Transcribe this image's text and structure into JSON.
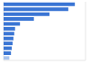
{
  "chart_data": {
    "type": "bar",
    "orientation": "horizontal",
    "categories": [
      null,
      null,
      null,
      null,
      null,
      null,
      null,
      null,
      null,
      null,
      null,
      null
    ],
    "values": [
      87,
      79,
      56,
      37,
      20,
      14,
      13,
      12,
      11,
      10,
      9,
      7
    ],
    "colors": [
      "#3a75d4",
      "#3a75d4",
      "#3a75d4",
      "#3a75d4",
      "#3a75d4",
      "#3a75d4",
      "#3a75d4",
      "#3a75d4",
      "#3a75d4",
      "#3a75d4",
      "#3a75d4",
      "#a9c4ee"
    ],
    "xlim": [
      0,
      100
    ],
    "xticks": [
      0,
      25,
      50,
      75,
      100
    ],
    "grid": true,
    "tick_labels": false
  }
}
